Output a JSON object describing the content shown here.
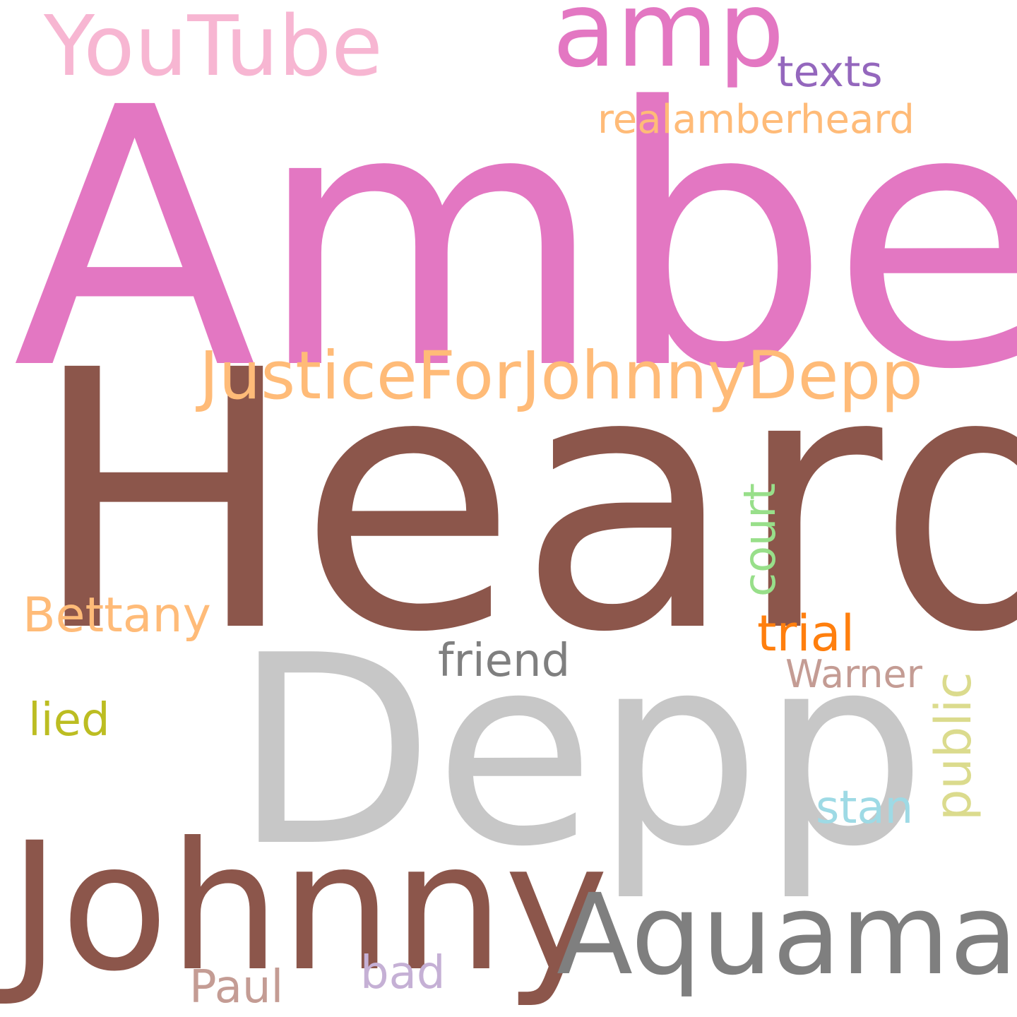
{
  "words": {
    "amber": {
      "text": "Amber",
      "color": "#e377c2"
    },
    "heard": {
      "text": "Heard",
      "color": "#8c564b"
    },
    "depp": {
      "text": "Depp",
      "color": "#c7c7c7"
    },
    "johnny": {
      "text": "Johnny",
      "color": "#8c564b"
    },
    "justice": {
      "text": "JusticeForJohnnyDepp",
      "color": "#ffbb78"
    },
    "aquaman": {
      "text": "Aquaman",
      "color": "#7f7f7f"
    },
    "youtube": {
      "text": "YouTube",
      "color": "#f7b6d2"
    },
    "amp": {
      "text": "amp",
      "color": "#e377c2"
    },
    "texts": {
      "text": "texts",
      "color": "#9467bd"
    },
    "realamberheard": {
      "text": "realamberheard",
      "color": "#ffbb78"
    },
    "court": {
      "text": "court",
      "color": "#98df8a"
    },
    "bettany": {
      "text": "Bettany",
      "color": "#ffbb78"
    },
    "trial": {
      "text": "trial",
      "color": "#ff7f0e"
    },
    "friend": {
      "text": "friend",
      "color": "#7f7f7f"
    },
    "warner": {
      "text": "Warner",
      "color": "#c49c94"
    },
    "public": {
      "text": "public",
      "color": "#dbdb8d"
    },
    "lied": {
      "text": "lied",
      "color": "#bcbd22"
    },
    "stan": {
      "text": "stan",
      "color": "#9edae5"
    },
    "paul": {
      "text": "Paul",
      "color": "#c49c94"
    },
    "bad": {
      "text": "bad",
      "color": "#c5b0d5"
    }
  }
}
